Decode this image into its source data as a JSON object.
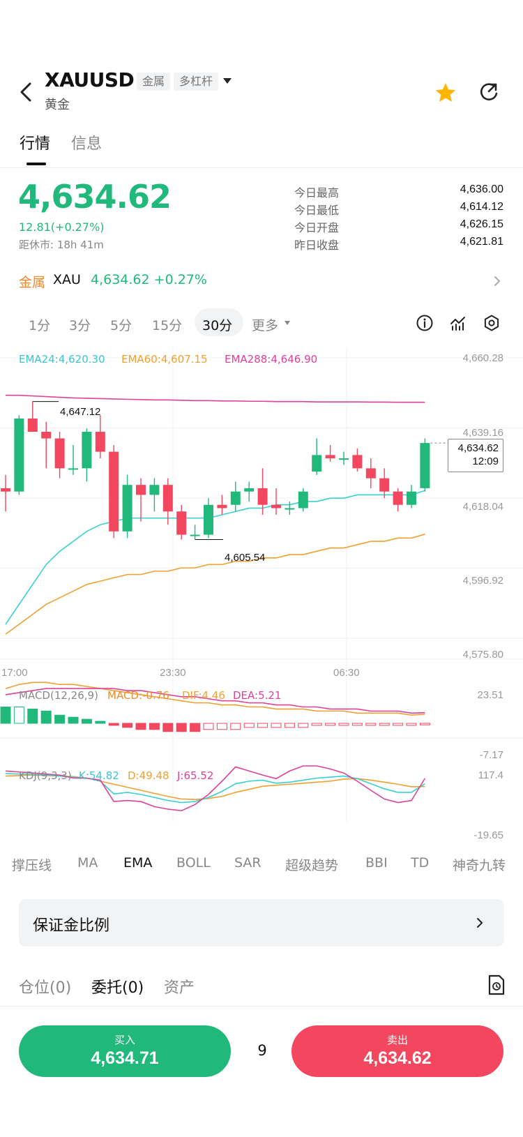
{
  "header": {
    "symbol": "XAUUSD",
    "tags": [
      "金属",
      "多杠杆"
    ],
    "name": "黄金"
  },
  "tabs": [
    {
      "label": "行情",
      "active": true
    },
    {
      "label": "信息",
      "active": false
    }
  ],
  "quote": {
    "price": "4,634.62",
    "change": "12.81(+0.27%)",
    "close_time": "距休市: 18h 41m",
    "stats": [
      {
        "label": "今日最高",
        "value": "4,636.00"
      },
      {
        "label": "今日最低",
        "value": "4,614.12"
      },
      {
        "label": "今日开盘",
        "value": "4,626.15"
      },
      {
        "label": "昨日收盘",
        "value": "4,621.81"
      }
    ]
  },
  "metal": {
    "label": "金属",
    "code": "XAU",
    "price_change": "4,634.62 +0.27%"
  },
  "timeframes": {
    "items": [
      "1分",
      "3分",
      "5分",
      "15分",
      "30分",
      "更多"
    ],
    "selected": "30分"
  },
  "toolbar_icons": [
    "info-icon",
    "indicator-chart-icon",
    "settings-icon"
  ],
  "chart": {
    "ema_legend": [
      "EMA24:4,620.30",
      "EMA60:4,607.15",
      "EMA288:4,646.90"
    ],
    "y_ticks": [
      "4,660.28",
      "4,639.16",
      "4,618.04",
      "4,596.92",
      "4,575.80"
    ],
    "x_ticks": [
      "17:00",
      "23:30",
      "06:30"
    ],
    "high_marker": "4,647.12",
    "low_marker": "4,605.54",
    "current_price": "4,634.62",
    "countdown": "12:09",
    "macd_legend": [
      "MACD(12,26,9)",
      "MACD:-0.76",
      "DIF:4.46",
      "DEA:5.21"
    ],
    "macd_ticks": [
      "23.51",
      "-7.17"
    ],
    "kdj_legend": [
      "KDJ(9,3,3)",
      "K:54.82",
      "D:49.48",
      "J:65.52"
    ],
    "kdj_ticks": [
      "117.4",
      "-19.65"
    ]
  },
  "chart_data": {
    "type": "candlestick",
    "interval": "30分",
    "x_labels": [
      "17:00",
      "23:30",
      "06:30"
    ],
    "ylim": [
      4575.8,
      4660.28
    ],
    "candles": [
      {
        "o": 4621,
        "h": 4625,
        "l": 4614,
        "c": 4620
      },
      {
        "o": 4620,
        "h": 4643,
        "l": 4619,
        "c": 4642
      },
      {
        "o": 4642,
        "h": 4647.12,
        "l": 4638,
        "c": 4638
      },
      {
        "o": 4638,
        "h": 4641,
        "l": 4627,
        "c": 4636
      },
      {
        "o": 4636,
        "h": 4638,
        "l": 4624,
        "c": 4627
      },
      {
        "o": 4627,
        "h": 4634,
        "l": 4625,
        "c": 4627
      },
      {
        "o": 4627,
        "h": 4639,
        "l": 4623,
        "c": 4638
      },
      {
        "o": 4638,
        "h": 4643,
        "l": 4630,
        "c": 4632
      },
      {
        "o": 4632,
        "h": 4634,
        "l": 4606,
        "c": 4608
      },
      {
        "o": 4608,
        "h": 4625,
        "l": 4606,
        "c": 4622
      },
      {
        "o": 4622,
        "h": 4624,
        "l": 4611,
        "c": 4619
      },
      {
        "o": 4619,
        "h": 4624,
        "l": 4614,
        "c": 4622
      },
      {
        "o": 4622,
        "h": 4624,
        "l": 4610,
        "c": 4614
      },
      {
        "o": 4614,
        "h": 4616,
        "l": 4605.54,
        "c": 4607
      },
      {
        "o": 4607,
        "h": 4610,
        "l": 4605.54,
        "c": 4607
      },
      {
        "o": 4607,
        "h": 4618,
        "l": 4606,
        "c": 4616
      },
      {
        "o": 4616,
        "h": 4619,
        "l": 4613,
        "c": 4615
      },
      {
        "o": 4616,
        "h": 4623,
        "l": 4614,
        "c": 4620
      },
      {
        "o": 4620,
        "h": 4623,
        "l": 4617,
        "c": 4621
      },
      {
        "o": 4621,
        "h": 4627,
        "l": 4613,
        "c": 4616
      },
      {
        "o": 4616,
        "h": 4621,
        "l": 4613,
        "c": 4615
      },
      {
        "o": 4615,
        "h": 4617,
        "l": 4613,
        "c": 4615
      },
      {
        "o": 4615,
        "h": 4621,
        "l": 4614,
        "c": 4620
      },
      {
        "o": 4626,
        "h": 4636,
        "l": 4625,
        "c": 4631
      },
      {
        "o": 4631,
        "h": 4634,
        "l": 4629,
        "c": 4630
      },
      {
        "o": 4630,
        "h": 4632,
        "l": 4628,
        "c": 4630
      },
      {
        "o": 4631,
        "h": 4633,
        "l": 4626,
        "c": 4627
      },
      {
        "o": 4627,
        "h": 4630,
        "l": 4621,
        "c": 4624
      },
      {
        "o": 4624,
        "h": 4627,
        "l": 4618,
        "c": 4620
      },
      {
        "o": 4620,
        "h": 4621,
        "l": 4614,
        "c": 4616
      },
      {
        "o": 4616,
        "h": 4622,
        "l": 4615,
        "c": 4620
      },
      {
        "o": 4621,
        "h": 4636,
        "l": 4620,
        "c": 4634.62
      }
    ],
    "ema24": [
      4580,
      4586,
      4592,
      4598,
      4602,
      4605,
      4608,
      4610,
      4611,
      4612,
      4612,
      4612,
      4612,
      4612,
      4612,
      4612,
      4613,
      4614,
      4615,
      4615,
      4616,
      4616,
      4617,
      4617,
      4618,
      4618,
      4619,
      4619,
      4619,
      4619,
      4619,
      4620.3
    ],
    "ema60": [
      4577,
      4580,
      4583,
      4586,
      4588,
      4590,
      4592,
      4593,
      4594,
      4595,
      4595,
      4596,
      4596,
      4597,
      4597,
      4598,
      4598,
      4599,
      4599,
      4600,
      4600,
      4601,
      4601,
      4602,
      4603,
      4603,
      4604,
      4605,
      4605,
      4606,
      4606,
      4607.15
    ],
    "ema288": [
      4649,
      4649,
      4648.8,
      4648.6,
      4648.4,
      4648.2,
      4648.1,
      4648,
      4647.9,
      4647.8,
      4647.7,
      4647.6,
      4647.6,
      4647.5,
      4647.4,
      4647.4,
      4647.3,
      4647.3,
      4647.2,
      4647.2,
      4647.1,
      4647.1,
      4647.1,
      4647.0,
      4647.0,
      4647.0,
      4647.0,
      4646.95,
      4646.95,
      4646.9,
      4646.9,
      4646.9
    ],
    "macd_hist": [
      8,
      8,
      7,
      6,
      4,
      3,
      2,
      1,
      -1,
      -2,
      -3,
      -3,
      -4,
      -4,
      -4,
      -3,
      -3,
      -3,
      -2,
      -2,
      -2,
      -2,
      -2,
      -1,
      -1,
      -1,
      -1,
      -1,
      -1,
      -1,
      -1,
      -0.76
    ],
    "dif": [
      17,
      19,
      20,
      20,
      19,
      19,
      18,
      17,
      16,
      15,
      14,
      13,
      12,
      11,
      10,
      10,
      9,
      9,
      8,
      8,
      7,
      7,
      7,
      6,
      6,
      6,
      5,
      5,
      5,
      5,
      4,
      4.46
    ],
    "dea": [
      14,
      15,
      16,
      17,
      17,
      17,
      17,
      17,
      17,
      16,
      16,
      15,
      14,
      13,
      13,
      12,
      11,
      11,
      10,
      10,
      9,
      9,
      8,
      8,
      7,
      7,
      7,
      6,
      6,
      6,
      5,
      5.21
    ],
    "macd_ylim": [
      -7.17,
      23.51
    ],
    "k": [
      75,
      74,
      73,
      72,
      70,
      68,
      66,
      60,
      35,
      38,
      34,
      28,
      22,
      18,
      20,
      28,
      40,
      55,
      60,
      62,
      56,
      58,
      62,
      66,
      68,
      70,
      65,
      55,
      45,
      38,
      38,
      54.82
    ],
    "d": [
      70,
      71,
      72,
      71,
      70,
      69,
      66,
      60,
      54,
      48,
      42,
      36,
      30,
      25,
      24,
      26,
      30,
      38,
      44,
      50,
      52,
      54,
      56,
      58,
      60,
      64,
      65,
      62,
      58,
      54,
      49,
      49.48
    ],
    "j": [
      80,
      78,
      76,
      74,
      72,
      66,
      66,
      62,
      20,
      22,
      20,
      10,
      5,
      2,
      14,
      34,
      60,
      88,
      80,
      72,
      65,
      80,
      90,
      90,
      84,
      76,
      60,
      42,
      25,
      18,
      22,
      65.52
    ],
    "kdj_ylim": [
      -19.65,
      117.4
    ]
  },
  "indicators": {
    "items": [
      "撑压线",
      "MA",
      "EMA",
      "BOLL",
      "SAR",
      "超级趋势",
      "BBI",
      "TD",
      "神奇九转"
    ],
    "selected": "EMA"
  },
  "margin": {
    "label": "保证金比例"
  },
  "bottom_tabs": [
    {
      "label": "仓位(0)",
      "active": false
    },
    {
      "label": "委托(0)",
      "active": true
    },
    {
      "label": "资产",
      "active": false
    }
  ],
  "trade": {
    "buy_label": "买入",
    "buy_price": "4,634.71",
    "spread": "9",
    "sell_label": "卖出",
    "sell_price": "4,634.62"
  },
  "colors": {
    "up": "#20b97b",
    "down": "#f2475e",
    "ema24": "#38d0d0",
    "ema60": "#f0a030",
    "ema288": "#e0409a",
    "accent_orange": "#f0892a",
    "star": "#ffb400"
  }
}
